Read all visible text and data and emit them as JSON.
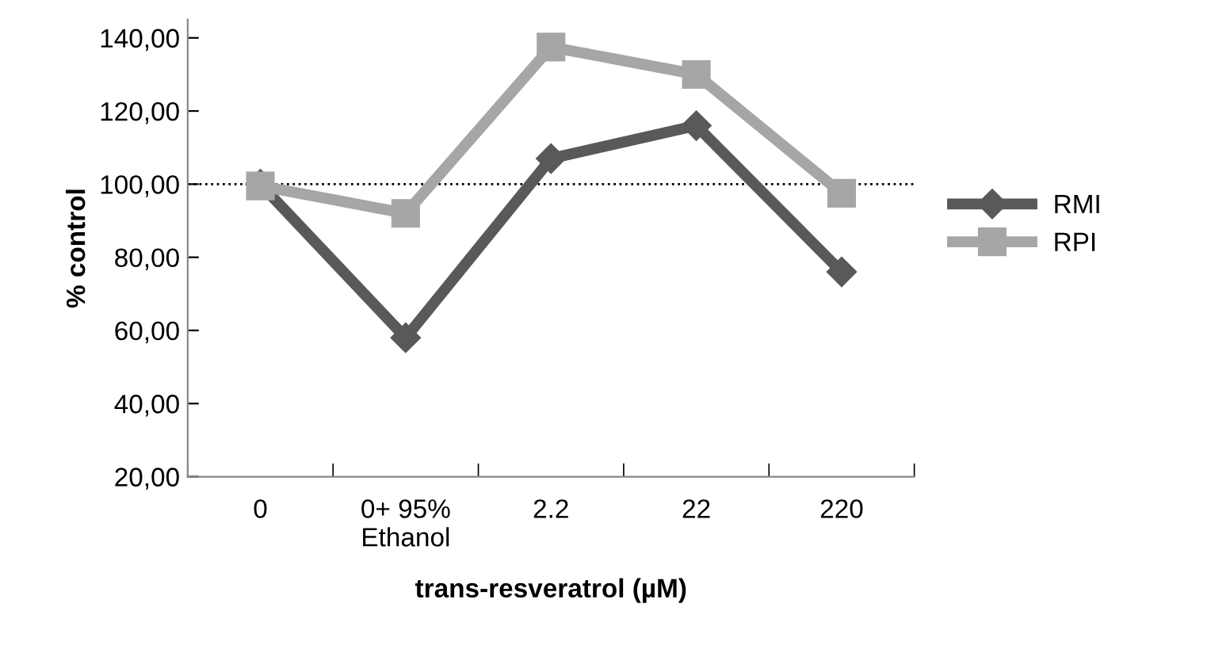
{
  "chart_data": {
    "type": "line",
    "categories": [
      "0",
      "0+ 95%\nEthanol",
      "2.2",
      "22",
      "220"
    ],
    "series": [
      {
        "name": "RMI",
        "color": "#595959",
        "marker": "diamond",
        "values": [
          100,
          58,
          107,
          116,
          76
        ]
      },
      {
        "name": "RPI",
        "color": "#a6a6a6",
        "marker": "square",
        "values": [
          99.5,
          92,
          137.5,
          130,
          97.5
        ]
      }
    ],
    "xlabel": "trans-resveratrol (µM)",
    "ylabel": "% control",
    "ylim": [
      20,
      145
    ],
    "yticks": [
      {
        "value": 20,
        "label": "20,00"
      },
      {
        "value": 40,
        "label": "40,00"
      },
      {
        "value": 60,
        "label": "60,00"
      },
      {
        "value": 80,
        "label": "80,00"
      },
      {
        "value": 100,
        "label": "100,00"
      },
      {
        "value": 120,
        "label": "120,00"
      },
      {
        "value": 140,
        "label": "140,00"
      }
    ],
    "ref_lines": [
      {
        "axis": "y",
        "value": 100,
        "color": "#000000",
        "line_style": "dotted"
      }
    ],
    "grid": false,
    "legend": "right",
    "line_style": "solid"
  }
}
